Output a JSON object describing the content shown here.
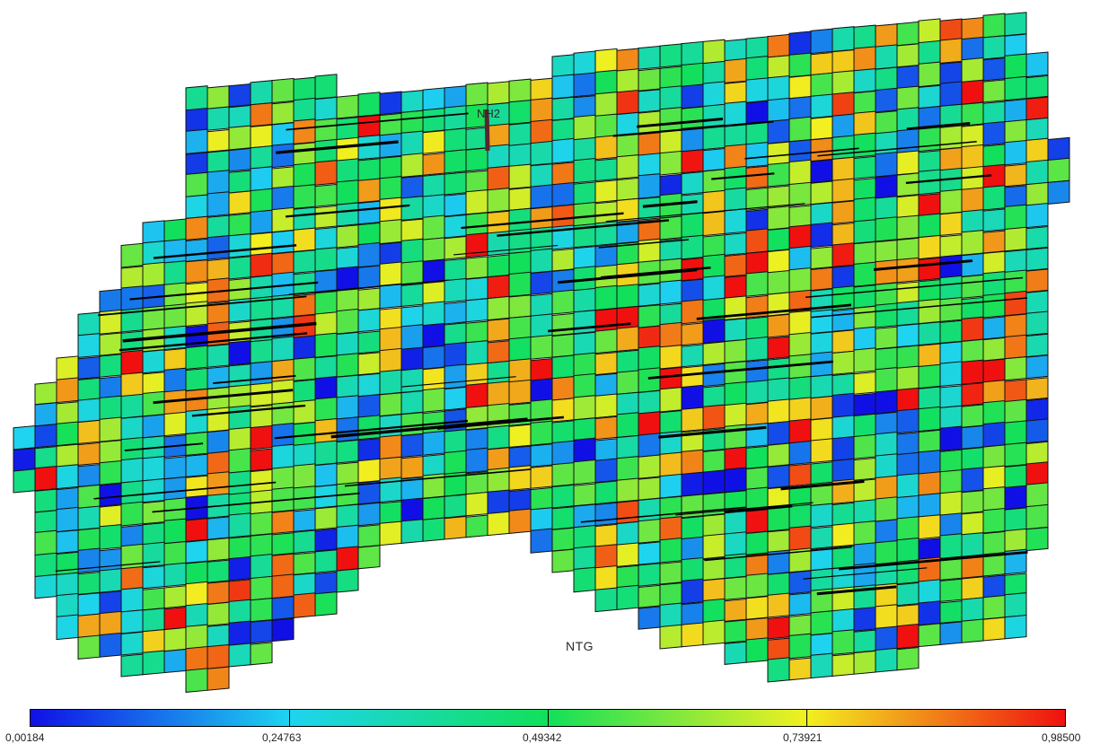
{
  "viewer": {
    "property_name": "NTG",
    "well_name": "NH2"
  },
  "colorbar": {
    "min_label": "0,00184",
    "tick_labels": [
      "0,00184",
      "0,24763",
      "0,49342",
      "0,73921",
      "0,98500"
    ],
    "tick_values": [
      0.00184,
      0.24763,
      0.49342,
      0.73921,
      0.985
    ],
    "colors": [
      "#1010e6",
      "#1ed4f0",
      "#12e05a",
      "#f2f020",
      "#f01010"
    ]
  }
}
